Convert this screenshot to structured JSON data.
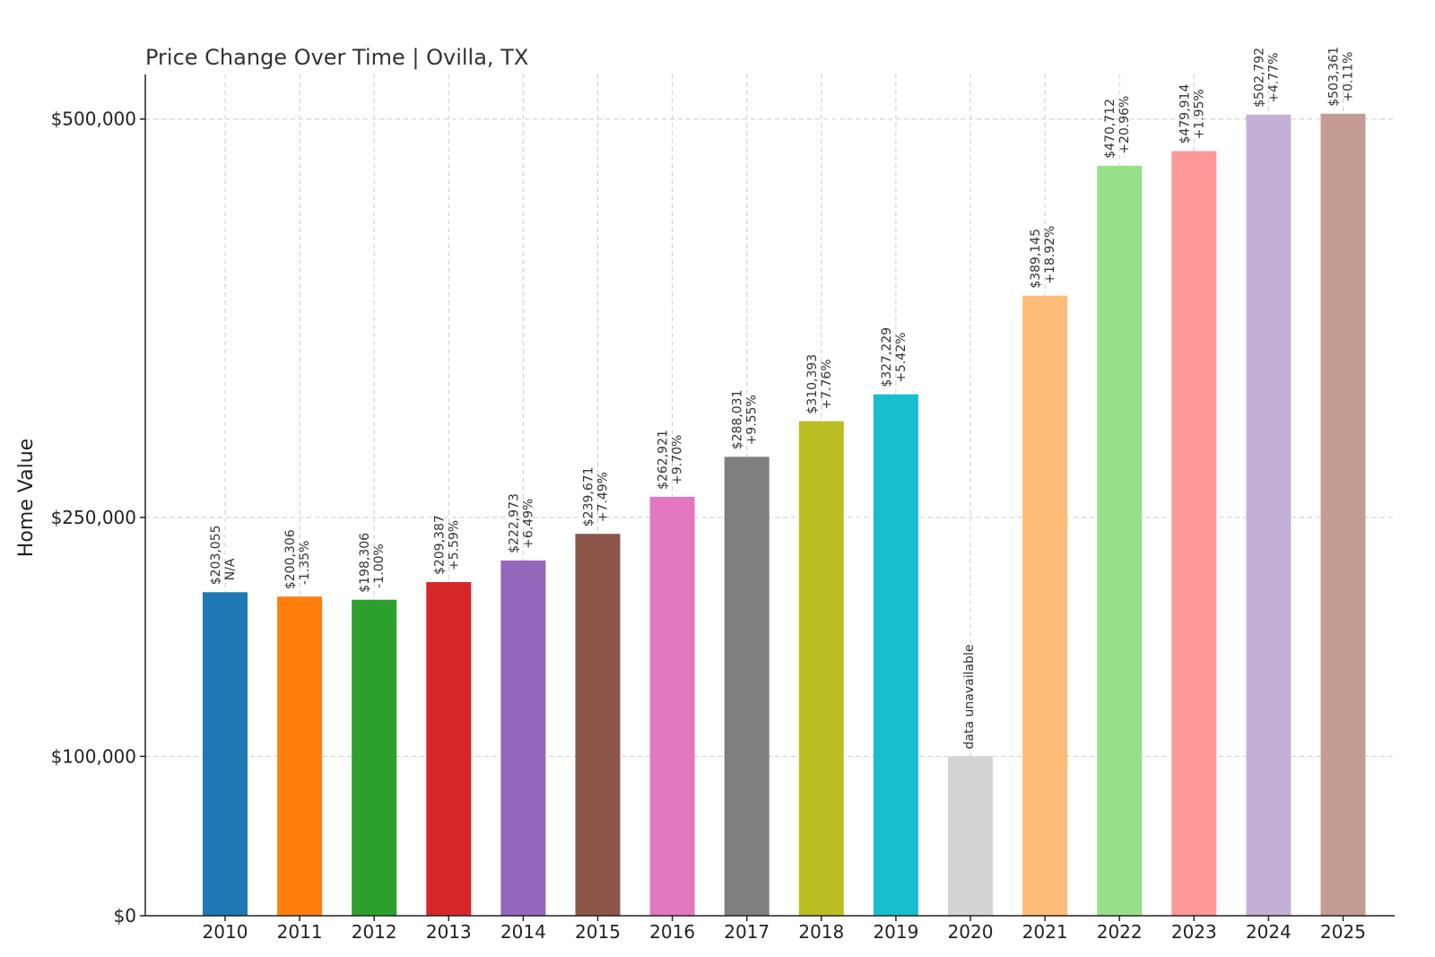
{
  "chart_data": {
    "type": "bar",
    "title": "Price Change Over Time | Ovilla, TX",
    "xlabel": "",
    "ylabel": "Home Value",
    "ylim": [
      0,
      528000
    ],
    "grid": true,
    "yticks": [
      {
        "value": 0,
        "label": "$0"
      },
      {
        "value": 100000,
        "label": "$100,000"
      },
      {
        "value": 250000,
        "label": "$250,000"
      },
      {
        "value": 500000,
        "label": "$500,000"
      }
    ],
    "categories": [
      "2010",
      "2011",
      "2012",
      "2013",
      "2014",
      "2015",
      "2016",
      "2017",
      "2018",
      "2019",
      "2020",
      "2021",
      "2022",
      "2023",
      "2024",
      "2025"
    ],
    "values": [
      203055,
      200306,
      198306,
      209387,
      222973,
      239671,
      262921,
      288031,
      310393,
      327229,
      100000,
      389145,
      470712,
      479914,
      502792,
      503361
    ],
    "value_labels": [
      "$203,055",
      "$200,306",
      "$198,306",
      "$209,387",
      "$222,973",
      "$239,671",
      "$262,921",
      "$288,031",
      "$310,393",
      "$327,229",
      "data unavailable",
      "$389,145",
      "$470,712",
      "$479,914",
      "$502,792",
      "$503,361"
    ],
    "change_labels": [
      "N/A",
      "-1.35%",
      "-1.00%",
      "+5.59%",
      "+6.49%",
      "+7.49%",
      "+9.70%",
      "+9.55%",
      "+7.76%",
      "+5.42%",
      "",
      "+18.92%",
      "+20.96%",
      "+1.95%",
      "+4.77%",
      "+0.11%"
    ],
    "colors": [
      "#1f77b4",
      "#ff7f0e",
      "#2ca02c",
      "#d62728",
      "#9467bd",
      "#8c564b",
      "#e377c2",
      "#7f7f7f",
      "#bcbd22",
      "#17becf",
      "#d3d3d3",
      "#ffbb78",
      "#98df8a",
      "#ff9896",
      "#c5b0d5",
      "#c49c94"
    ]
  }
}
